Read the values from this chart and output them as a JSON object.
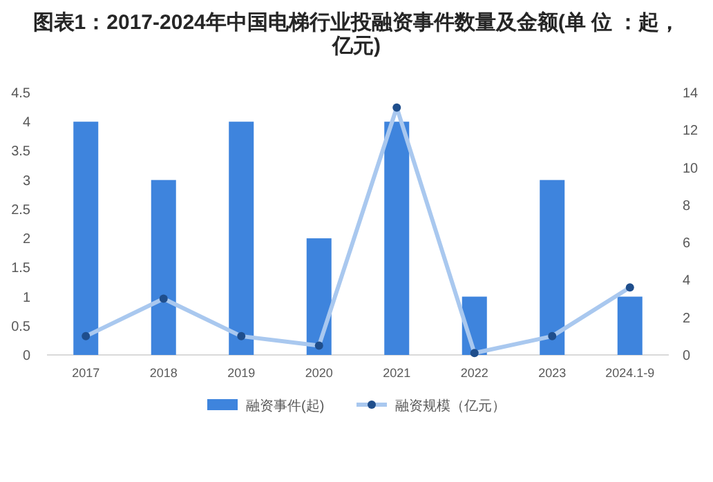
{
  "chart_data": {
    "type": "bar",
    "title": "图表1：2017-2024年中国电梯行业投融资事件数量及金额(单 位 ：起，亿元)",
    "categories": [
      "2017",
      "2018",
      "2019",
      "2020",
      "2021",
      "2022",
      "2023",
      "2024.1-9"
    ],
    "series": [
      {
        "name": "融资事件(起)",
        "color": "#3e84dd",
        "values": [
          4,
          3,
          4,
          2,
          4,
          1,
          3,
          1
        ]
      },
      {
        "name": "融资规模（亿元）",
        "type": "line",
        "axis": "y2",
        "color": "#a9c8ef",
        "marker": "circle",
        "values": [
          1.0,
          3.0,
          1.0,
          0.5,
          13.2,
          0.1,
          1.0,
          3.6
        ]
      }
    ],
    "ylim": [
      0,
      4.5
    ],
    "yticks": [
      0,
      0.5,
      1,
      1.5,
      2,
      2.5,
      3,
      3.5,
      4,
      4.5
    ],
    "y2lim": [
      0,
      14
    ],
    "y2ticks": [
      0,
      2,
      4,
      6,
      8,
      10,
      12,
      14
    ],
    "legend": "bottom",
    "grid": false
  }
}
